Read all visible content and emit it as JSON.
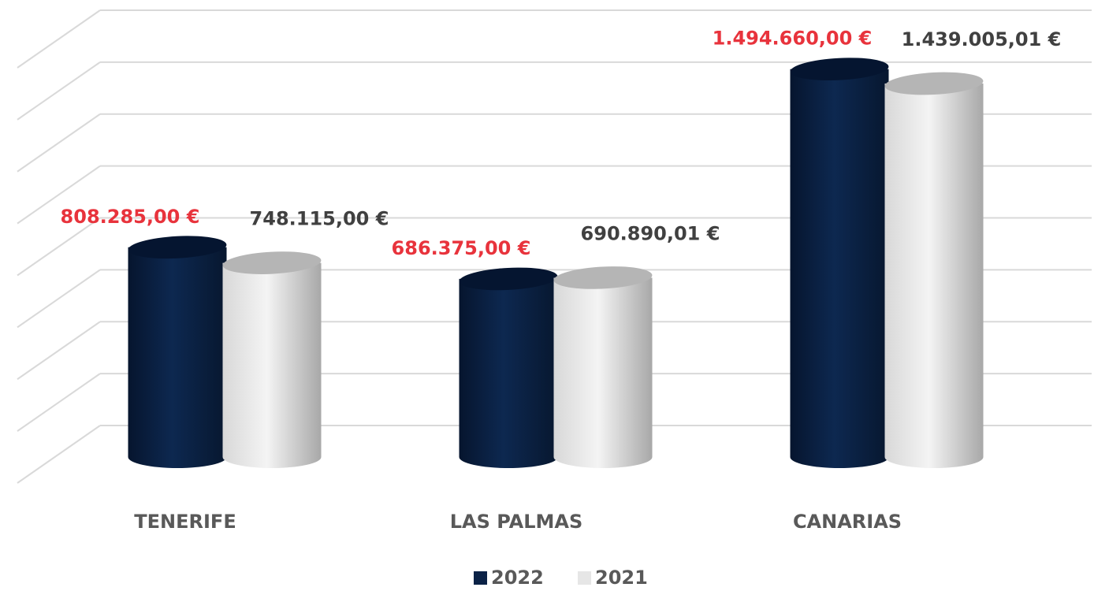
{
  "chart_data": {
    "type": "cylinder",
    "categories": [
      "TENERIFE",
      "LAS PALMAS",
      "CANARIAS"
    ],
    "series": [
      {
        "name": "2022",
        "color": "#0b2246",
        "label_color": "#e8333c",
        "values": [
          808285,
          686375,
          1494660
        ],
        "value_labels": [
          "808.285,00 €",
          "686.375,00 €",
          "1.494.660,00 €"
        ]
      },
      {
        "name": "2021",
        "color": "#ececec",
        "label_color": "#404040",
        "values": [
          748115,
          690890.01,
          1439005.01
        ],
        "value_labels": [
          "748.115,00 €",
          "690.890,01 €",
          "1.439.005,01 €"
        ]
      }
    ],
    "ylim": [
      0,
      1600000
    ],
    "yticks": [
      0,
      200000,
      400000,
      600000,
      800000,
      1000000,
      1200000,
      1400000,
      1600000
    ],
    "ytick_labels": false,
    "grid": true,
    "legend": "bottom"
  }
}
